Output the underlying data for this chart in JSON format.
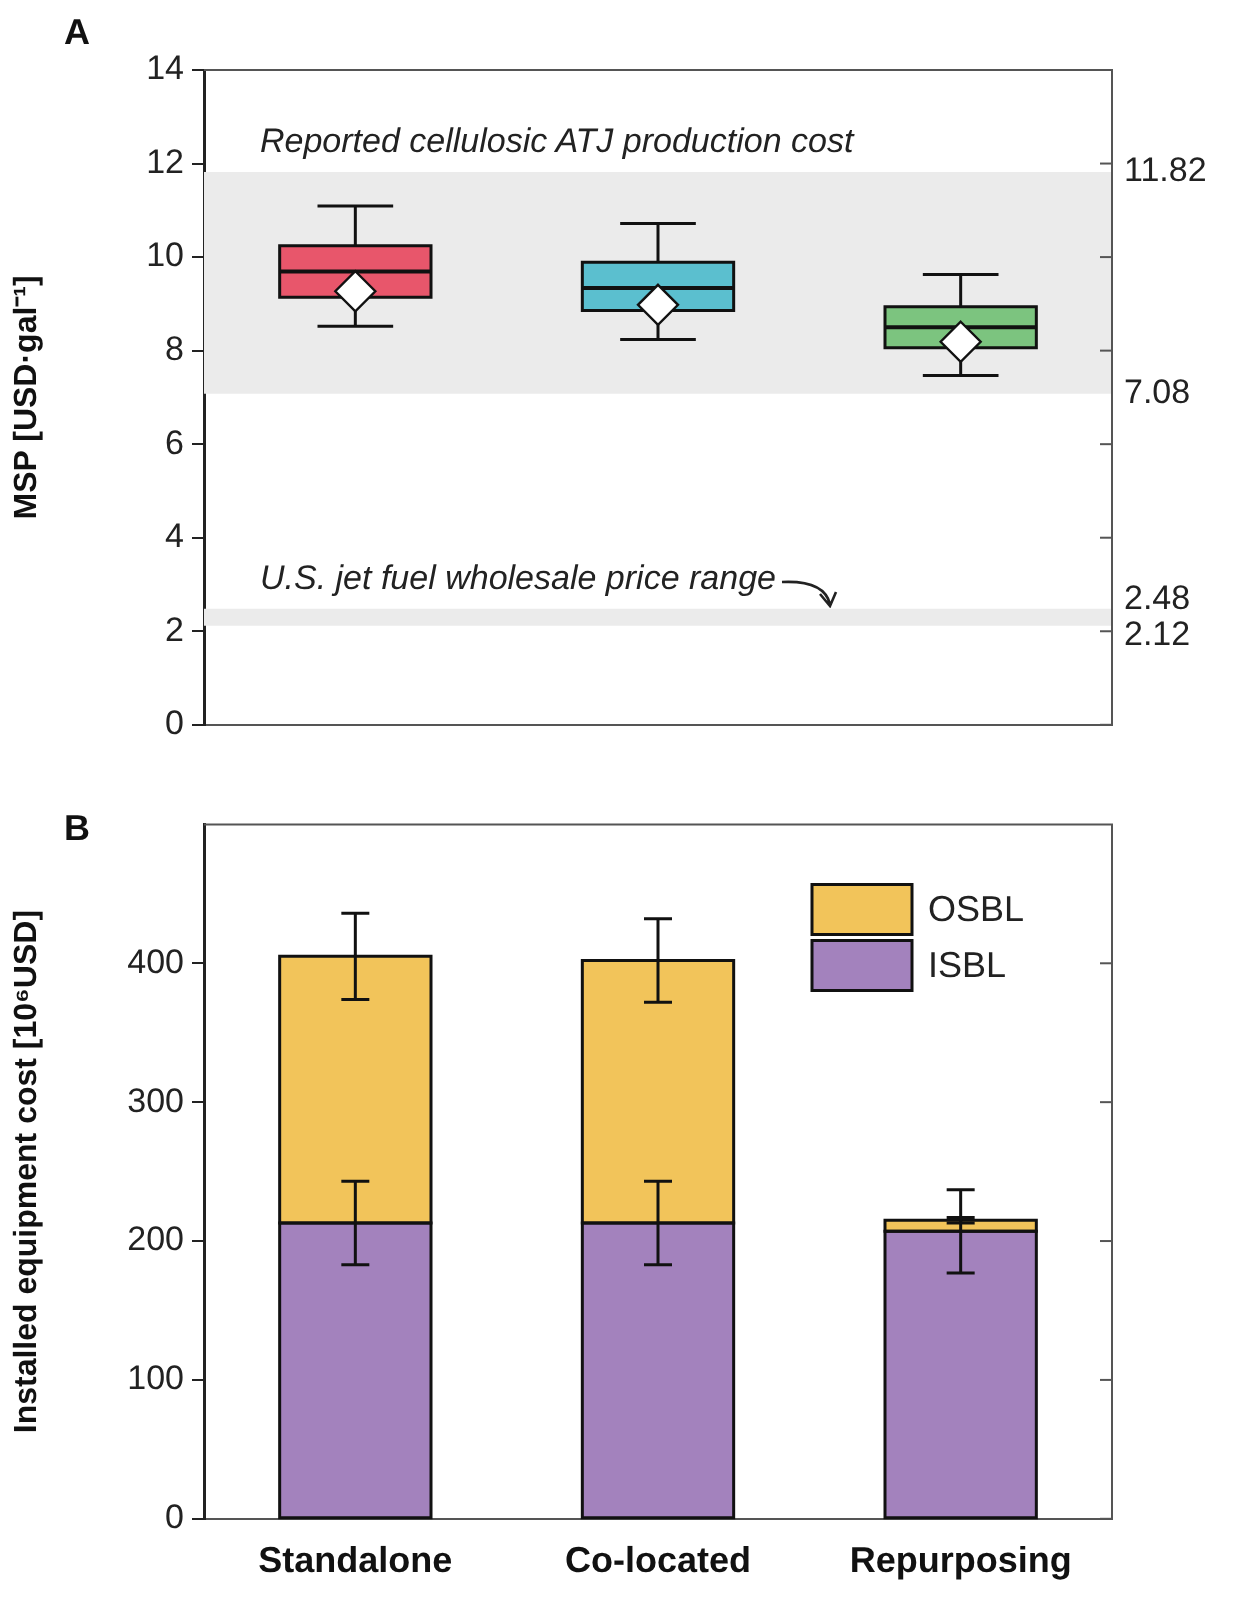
{
  "chart_data": [
    {
      "type": "box",
      "title": "A",
      "ylabel": "MSP [USD·gal⁻¹]",
      "categories": [
        null,
        null,
        null
      ],
      "ylim": [
        0,
        14
      ],
      "yticks": [
        0,
        2,
        4,
        6,
        8,
        10,
        12,
        14
      ],
      "y2lim": [
        0,
        14
      ],
      "y2ticks": [
        2.12,
        2.48,
        7.08,
        11.82
      ],
      "boxes": [
        {
          "low": 8.52,
          "q1": 9.14,
          "median": 9.69,
          "q3": 10.24,
          "high": 11.09,
          "mean": 9.27
        },
        {
          "low": 8.24,
          "q1": 8.86,
          "median": 9.34,
          "q3": 9.89,
          "high": 10.72,
          "mean": 8.98
        },
        {
          "low": 7.47,
          "q1": 8.06,
          "median": 8.5,
          "q3": 8.94,
          "high": 9.63,
          "mean": 8.19
        }
      ],
      "colors": [
        "#e8566b",
        "#5bbfcf",
        "#7cc47f"
      ],
      "bands": [
        {
          "axis": "y",
          "from": 7.08,
          "to": 11.82,
          "label": "Reported cellulosic ATJ production cost",
          "color": "#ebebeb"
        },
        {
          "axis": "y",
          "from": 2.12,
          "to": 2.48,
          "label": "U.S. jet fuel wholesale price range",
          "color": "#ebebeb"
        }
      ],
      "grid": false,
      "legend": false
    },
    {
      "type": "bar",
      "title": "B",
      "ylabel": "Installed equipment cost [10⁶USD]",
      "categories": [
        "Standalone",
        "Co-located",
        "Repurposing"
      ],
      "stacked": true,
      "ylim": [
        0,
        500
      ],
      "yticks": [
        0,
        100,
        200,
        300,
        400
      ],
      "series": [
        {
          "name": "ISBL",
          "color": "#a382bd",
          "values": [
            213,
            213,
            207
          ],
          "errors": [
            30,
            30,
            30
          ]
        },
        {
          "name": "OSBL",
          "color": "#f2c45a",
          "values": [
            192,
            189,
            8
          ],
          "errors": [
            31,
            30,
            2
          ]
        }
      ],
      "grid": false,
      "legend": "top right"
    }
  ]
}
